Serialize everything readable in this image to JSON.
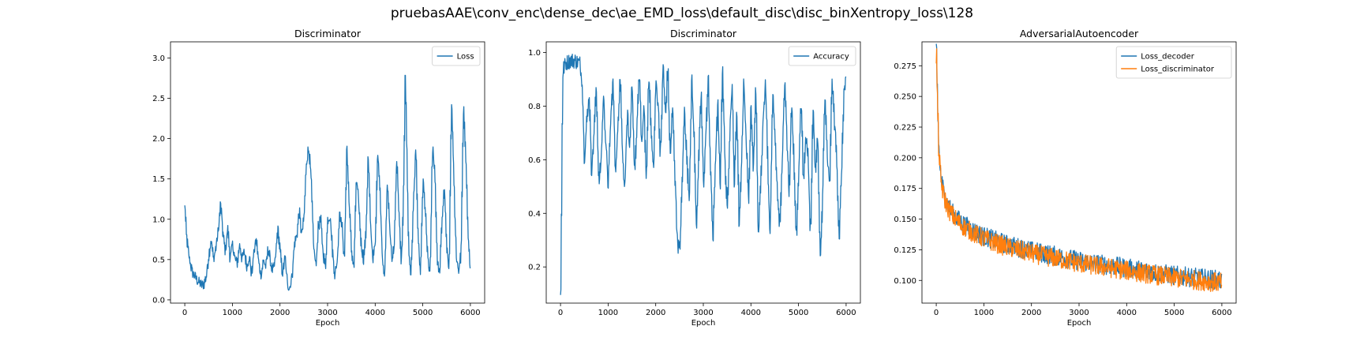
{
  "figure": {
    "suptitle": "pruebasAAE\\conv_enc\\dense_dec\\ae_EMD_loss\\default_disc\\disc_binXentropy_loss\\128"
  },
  "chart_data": [
    {
      "type": "line",
      "title": "Discriminator",
      "xlabel": "Epoch",
      "ylabel": "",
      "xlim": [
        -300,
        6300
      ],
      "ylim": [
        -0.04,
        3.2
      ],
      "xticks": [
        0,
        1000,
        2000,
        3000,
        4000,
        5000,
        6000
      ],
      "yticks": [
        0.0,
        0.5,
        1.0,
        1.5,
        2.0,
        2.5,
        3.0
      ],
      "ytick_labels": [
        "0.0",
        "0.5",
        "1.0",
        "1.5",
        "2.0",
        "2.5",
        "3.0"
      ],
      "legend_position": "top-right",
      "grid": false,
      "noise": 0.07,
      "series": [
        {
          "name": "Loss",
          "color": "#1f77b4",
          "x": [
            0,
            30,
            80,
            150,
            250,
            350,
            400,
            450,
            500,
            550,
            600,
            650,
            700,
            750,
            800,
            850,
            900,
            950,
            1000,
            1050,
            1100,
            1150,
            1200,
            1250,
            1300,
            1350,
            1400,
            1450,
            1500,
            1550,
            1600,
            1650,
            1700,
            1750,
            1800,
            1850,
            1900,
            1950,
            2000,
            2050,
            2100,
            2150,
            2200,
            2250,
            2300,
            2350,
            2400,
            2450,
            2500,
            2550,
            2600,
            2650,
            2700,
            2750,
            2800,
            2850,
            2900,
            2950,
            3000,
            3050,
            3100,
            3150,
            3200,
            3250,
            3300,
            3350,
            3400,
            3450,
            3500,
            3550,
            3600,
            3650,
            3700,
            3750,
            3800,
            3850,
            3900,
            3950,
            4000,
            4050,
            4100,
            4150,
            4200,
            4250,
            4300,
            4350,
            4400,
            4450,
            4500,
            4550,
            4600,
            4630,
            4650,
            4700,
            4750,
            4800,
            4850,
            4900,
            4950,
            5000,
            5050,
            5100,
            5150,
            5200,
            5250,
            5300,
            5350,
            5400,
            5450,
            5500,
            5550,
            5600,
            5650,
            5700,
            5750,
            5800,
            5850,
            5900,
            5950,
            6000
          ],
          "y": [
            1.15,
            0.8,
            0.55,
            0.35,
            0.25,
            0.18,
            0.2,
            0.3,
            0.55,
            0.75,
            0.5,
            0.65,
            0.85,
            1.2,
            0.8,
            0.6,
            0.9,
            0.5,
            0.7,
            0.5,
            0.45,
            0.7,
            0.5,
            0.6,
            0.4,
            0.55,
            0.3,
            0.6,
            0.75,
            0.45,
            0.3,
            0.5,
            0.4,
            0.65,
            0.45,
            0.35,
            0.5,
            0.9,
            0.6,
            0.3,
            0.55,
            0.2,
            0.15,
            0.3,
            0.7,
            0.8,
            1.1,
            0.8,
            1.0,
            1.7,
            1.9,
            1.5,
            0.7,
            0.4,
            0.9,
            1.0,
            0.6,
            0.4,
            1.0,
            1.05,
            0.6,
            0.3,
            0.5,
            1.1,
            0.9,
            0.5,
            1.9,
            1.2,
            0.6,
            0.4,
            1.5,
            1.2,
            0.7,
            0.5,
            0.8,
            1.8,
            0.9,
            0.5,
            0.7,
            1.9,
            1.3,
            0.5,
            0.3,
            1.5,
            0.9,
            0.5,
            0.7,
            1.8,
            1.0,
            0.4,
            1.5,
            3.0,
            2.2,
            0.6,
            0.3,
            1.2,
            1.9,
            0.7,
            0.3,
            1.5,
            1.1,
            0.5,
            0.3,
            1.9,
            1.6,
            0.5,
            0.3,
            1.0,
            1.4,
            0.6,
            0.4,
            2.5,
            1.5,
            0.5,
            0.3,
            0.6,
            2.4,
            1.8,
            0.8,
            0.3
          ]
        }
      ]
    },
    {
      "type": "line",
      "title": "Discriminator",
      "xlabel": "Epoch",
      "ylabel": "",
      "xlim": [
        -300,
        6300
      ],
      "ylim": [
        0.065,
        1.04
      ],
      "xticks": [
        0,
        1000,
        2000,
        3000,
        4000,
        5000,
        6000
      ],
      "yticks": [
        0.2,
        0.4,
        0.6,
        0.8,
        1.0
      ],
      "ytick_labels": [
        "0.2",
        "0.4",
        "0.6",
        "0.8",
        "1.0"
      ],
      "legend_position": "top-right",
      "grid": false,
      "noise": 0.03,
      "series": [
        {
          "name": "Accuracy",
          "color": "#1f77b4",
          "x": [
            0,
            20,
            40,
            60,
            100,
            200,
            300,
            400,
            450,
            500,
            550,
            600,
            650,
            700,
            750,
            800,
            850,
            900,
            950,
            1000,
            1050,
            1100,
            1150,
            1200,
            1250,
            1300,
            1350,
            1400,
            1450,
            1500,
            1550,
            1600,
            1650,
            1700,
            1750,
            1800,
            1850,
            1900,
            1950,
            2000,
            2050,
            2100,
            2150,
            2200,
            2250,
            2300,
            2350,
            2400,
            2450,
            2500,
            2550,
            2600,
            2650,
            2700,
            2750,
            2800,
            2850,
            2900,
            2950,
            3000,
            3050,
            3100,
            3150,
            3200,
            3250,
            3300,
            3350,
            3400,
            3450,
            3500,
            3550,
            3600,
            3650,
            3700,
            3750,
            3800,
            3850,
            3900,
            3950,
            4000,
            4050,
            4100,
            4150,
            4200,
            4250,
            4300,
            4350,
            4400,
            4450,
            4500,
            4550,
            4600,
            4650,
            4700,
            4750,
            4800,
            4850,
            4900,
            4950,
            5000,
            5050,
            5100,
            5150,
            5200,
            5250,
            5300,
            5350,
            5400,
            5450,
            5500,
            5550,
            5600,
            5650,
            5700,
            5750,
            5800,
            5850,
            5900,
            5950,
            6000
          ],
          "y": [
            0.11,
            0.45,
            0.9,
            0.94,
            0.96,
            0.97,
            0.97,
            0.96,
            0.9,
            0.6,
            0.75,
            0.85,
            0.55,
            0.7,
            0.88,
            0.5,
            0.6,
            0.85,
            0.65,
            0.5,
            0.75,
            0.9,
            0.55,
            0.7,
            0.95,
            0.6,
            0.5,
            0.8,
            0.6,
            0.9,
            0.55,
            0.7,
            0.94,
            0.65,
            0.8,
            0.5,
            0.95,
            0.7,
            0.55,
            0.9,
            0.8,
            0.6,
            0.97,
            0.75,
            0.95,
            0.6,
            0.8,
            0.55,
            0.3,
            0.25,
            0.5,
            0.8,
            0.6,
            0.45,
            0.9,
            0.7,
            0.35,
            0.6,
            0.85,
            0.5,
            0.7,
            0.9,
            0.55,
            0.3,
            0.6,
            0.8,
            0.5,
            0.95,
            0.6,
            0.4,
            0.7,
            0.88,
            0.5,
            0.8,
            0.35,
            0.6,
            0.9,
            0.65,
            0.45,
            0.8,
            0.55,
            0.9,
            0.3,
            0.5,
            0.75,
            0.9,
            0.6,
            0.3,
            0.85,
            0.7,
            0.5,
            0.35,
            0.55,
            0.9,
            0.7,
            0.45,
            0.8,
            0.6,
            0.3,
            0.55,
            0.85,
            0.5,
            0.7,
            0.6,
            0.3,
            0.8,
            0.55,
            0.7,
            0.2,
            0.45,
            0.85,
            0.6,
            0.5,
            0.9,
            0.75,
            0.6,
            0.3,
            0.55,
            0.85,
            0.9
          ]
        }
      ]
    },
    {
      "type": "line",
      "title": "AdversarialAutoencoder",
      "xlabel": "Epoch",
      "ylabel": "",
      "xlim": [
        -300,
        6300
      ],
      "ylim": [
        0.0815,
        0.2945
      ],
      "xticks": [
        0,
        1000,
        2000,
        3000,
        4000,
        5000,
        6000
      ],
      "yticks": [
        0.1,
        0.125,
        0.15,
        0.175,
        0.2,
        0.225,
        0.25,
        0.275
      ],
      "ytick_labels": [
        "0.100",
        "0.125",
        "0.150",
        "0.175",
        "0.200",
        "0.225",
        "0.250",
        "0.275"
      ],
      "legend_position": "top-right",
      "grid": false,
      "noise": 0.008,
      "series": [
        {
          "name": "Loss_decoder",
          "color": "#1f77b4",
          "x": [
            0,
            10,
            20,
            40,
            60,
            80,
            100,
            150,
            200,
            300,
            400,
            500,
            600,
            800,
            1000,
            1200,
            1500,
            1800,
            2000,
            2500,
            3000,
            3500,
            4000,
            4500,
            5000,
            5500,
            6000
          ],
          "y": [
            0.285,
            0.27,
            0.25,
            0.22,
            0.2,
            0.19,
            0.182,
            0.172,
            0.165,
            0.157,
            0.152,
            0.148,
            0.145,
            0.14,
            0.136,
            0.133,
            0.129,
            0.126,
            0.124,
            0.12,
            0.116,
            0.113,
            0.11,
            0.107,
            0.104,
            0.102,
            0.1
          ]
        },
        {
          "name": "Loss_discriminator",
          "color": "#ff7f0e",
          "x": [
            0,
            10,
            20,
            40,
            60,
            80,
            100,
            150,
            200,
            300,
            400,
            500,
            600,
            800,
            1000,
            1200,
            1500,
            1800,
            2000,
            2500,
            3000,
            3500,
            4000,
            4500,
            5000,
            5500,
            6000
          ],
          "y": [
            0.283,
            0.268,
            0.248,
            0.218,
            0.198,
            0.188,
            0.18,
            0.17,
            0.163,
            0.155,
            0.15,
            0.146,
            0.143,
            0.138,
            0.134,
            0.131,
            0.127,
            0.124,
            0.122,
            0.118,
            0.114,
            0.111,
            0.108,
            0.105,
            0.102,
            0.1,
            0.098
          ]
        }
      ]
    }
  ]
}
